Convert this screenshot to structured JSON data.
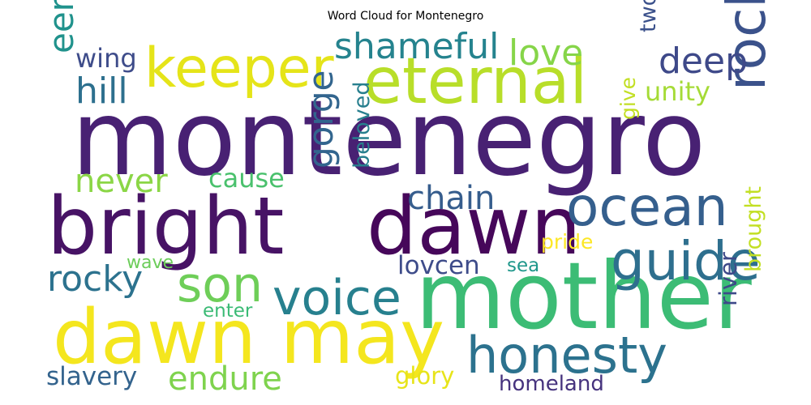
{
  "title": "Word Cloud for Montenegro",
  "words": [
    {
      "text": "montenegro",
      "color": "#482173"
    },
    {
      "text": "bright",
      "color": "#471365"
    },
    {
      "text": "dawn",
      "color": "#46075a"
    },
    {
      "text": "mother",
      "color": "#3cbc75"
    },
    {
      "text": "dawn may",
      "color": "#f4e61e"
    },
    {
      "text": "eternal",
      "color": "#b8de29"
    },
    {
      "text": "keeper",
      "color": "#e5e419"
    },
    {
      "text": "rock",
      "color": "#3b528b"
    },
    {
      "text": "ocean",
      "color": "#355f8d"
    },
    {
      "text": "guide",
      "color": "#2e6f8e"
    },
    {
      "text": "honesty",
      "color": "#2c728e"
    },
    {
      "text": "voice",
      "color": "#27808e"
    },
    {
      "text": "son",
      "color": "#6ece58"
    },
    {
      "text": "shameful",
      "color": "#25838e"
    },
    {
      "text": "deep",
      "color": "#3e4989"
    },
    {
      "text": "love",
      "color": "#86d549"
    },
    {
      "text": "wing",
      "color": "#3e4c8a"
    },
    {
      "text": "hill",
      "color": "#2d708e"
    },
    {
      "text": "eerie",
      "color": "#20928c"
    },
    {
      "text": "unity",
      "color": "#a5db36"
    },
    {
      "text": "two",
      "color": "#3b518b"
    },
    {
      "text": "never",
      "color": "#8bd646"
    },
    {
      "text": "cause",
      "color": "#4ac16d"
    },
    {
      "text": "chain",
      "color": "#365d8d"
    },
    {
      "text": "gorge",
      "color": "#32658e"
    },
    {
      "text": "beloved",
      "color": "#277f8e"
    },
    {
      "text": "give",
      "color": "#c2df23"
    },
    {
      "text": "pride",
      "color": "#fde725"
    },
    {
      "text": "rocky",
      "color": "#2c728e"
    },
    {
      "text": "wave",
      "color": "#6ccd5a"
    },
    {
      "text": "lovcen",
      "color": "#3e4c8a"
    },
    {
      "text": "sea",
      "color": "#1f978b"
    },
    {
      "text": "enter",
      "color": "#3bbb75"
    },
    {
      "text": "river",
      "color": "#3e4989"
    },
    {
      "text": "brought",
      "color": "#c2df23"
    },
    {
      "text": "slavery",
      "color": "#33638d"
    },
    {
      "text": "endure",
      "color": "#7fd34e"
    },
    {
      "text": "glory",
      "color": "#e7e419"
    },
    {
      "text": "homeland",
      "color": "#46337e"
    }
  ]
}
